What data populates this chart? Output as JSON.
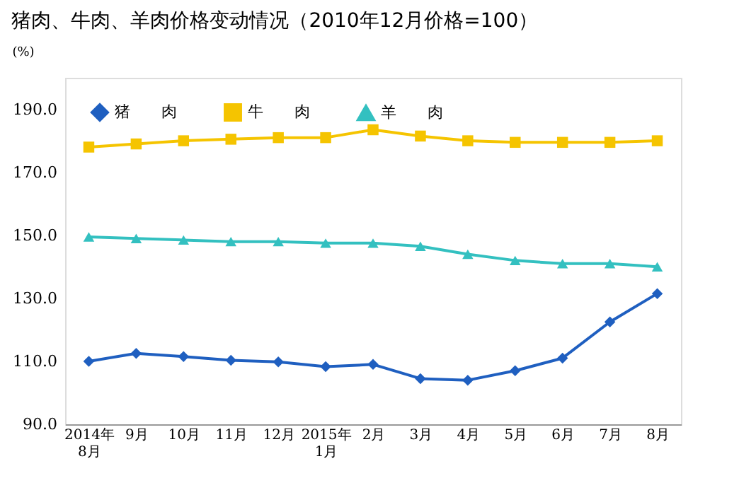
{
  "chart_data": {
    "type": "line",
    "title": "猪肉、牛肉、羊肉价格变动情况（2010年12月价格=100）",
    "ylabel": "(%)",
    "categories": [
      "2014年\n8月",
      "9月",
      "10月",
      "11月",
      "12月",
      "2015年\n1月",
      "2月",
      "3月",
      "4月",
      "5月",
      "6月",
      "7月",
      "8月"
    ],
    "series": [
      {
        "name": "猪　　肉",
        "color": "#1f5fc0",
        "marker": "diamond",
        "values": [
          110,
          112.5,
          111.5,
          110.3,
          109.8,
          108.3,
          109,
          104.5,
          104,
          107,
          111,
          122.5,
          131.5
        ]
      },
      {
        "name": "牛　　肉",
        "color": "#f5c400",
        "marker": "square",
        "values": [
          178,
          179,
          180,
          180.5,
          181,
          181,
          183.5,
          181.5,
          180,
          179.5,
          179.5,
          179.5,
          180
        ]
      },
      {
        "name": "羊　　肉",
        "color": "#33c0c0",
        "marker": "triangle",
        "values": [
          149.5,
          149,
          148.5,
          148,
          148,
          147.5,
          147.5,
          146.5,
          144,
          142,
          141,
          141,
          140
        ]
      }
    ],
    "ylim": [
      90,
      200
    ],
    "yticks": [
      {
        "value": 90,
        "label": "90.0"
      },
      {
        "value": 110,
        "label": "110.0"
      },
      {
        "value": 130,
        "label": "130.0"
      },
      {
        "value": 150,
        "label": "150.0"
      },
      {
        "value": 170,
        "label": "170.0"
      },
      {
        "value": 190,
        "label": "190.0"
      }
    ],
    "grid": false,
    "legend": "top left",
    "line_style": "solid"
  }
}
